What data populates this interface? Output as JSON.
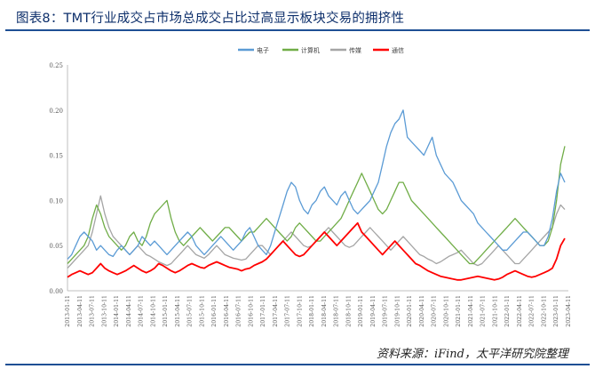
{
  "header": {
    "title": "图表8：TMT行业成交占市场总成交占比过高显示板块交易的拥挤性"
  },
  "footer": {
    "source": "资料来源：iFind，太平洋研究院整理"
  },
  "chart_data": {
    "type": "line",
    "title": "",
    "xlabel": "",
    "ylabel": "",
    "ylim": [
      0,
      0.25
    ],
    "yticks": [
      "0.00",
      "0.05",
      "0.10",
      "0.15",
      "0.20",
      "0.25"
    ],
    "x_tick_labels": [
      "2013-01-11",
      "2013-04-11",
      "2013-07-11",
      "2013-10-11",
      "2014-01-11",
      "2014-04-11",
      "2014-07-11",
      "2014-10-11",
      "2015-01-11",
      "2015-04-11",
      "2015-07-11",
      "2015-10-11",
      "2016-01-11",
      "2016-04-11",
      "2016-07-11",
      "2016-10-11",
      "2017-01-11",
      "2017-04-11",
      "2017-07-11",
      "2017-10-11",
      "2018-01-11",
      "2018-04-11",
      "2018-07-11",
      "2018-10-11",
      "2019-01-11",
      "2019-04-11",
      "2019-07-11",
      "2019-10-11",
      "2020-01-11",
      "2020-04-11",
      "2020-07-11",
      "2020-10-11",
      "2021-01-11",
      "2021-04-11",
      "2021-07-11",
      "2021-10-11",
      "2022-01-11",
      "2022-04-11",
      "2022-07-11",
      "2022-10-11",
      "2023-01-11",
      "2023-04-11"
    ],
    "grid": false,
    "legend_position": "top-center",
    "series": [
      {
        "name": "电子",
        "color": "#5b9bd5",
        "values": [
          0.035,
          0.04,
          0.05,
          0.06,
          0.065,
          0.06,
          0.055,
          0.045,
          0.05,
          0.045,
          0.04,
          0.038,
          0.045,
          0.05,
          0.045,
          0.04,
          0.045,
          0.05,
          0.06,
          0.055,
          0.05,
          0.055,
          0.05,
          0.045,
          0.04,
          0.045,
          0.05,
          0.055,
          0.06,
          0.065,
          0.06,
          0.05,
          0.045,
          0.04,
          0.045,
          0.05,
          0.055,
          0.06,
          0.055,
          0.05,
          0.045,
          0.05,
          0.055,
          0.065,
          0.07,
          0.06,
          0.05,
          0.045,
          0.04,
          0.05,
          0.065,
          0.08,
          0.095,
          0.11,
          0.12,
          0.115,
          0.1,
          0.09,
          0.085,
          0.095,
          0.1,
          0.11,
          0.115,
          0.105,
          0.1,
          0.095,
          0.105,
          0.11,
          0.1,
          0.09,
          0.085,
          0.09,
          0.095,
          0.1,
          0.11,
          0.12,
          0.14,
          0.16,
          0.175,
          0.185,
          0.19,
          0.2,
          0.17,
          0.165,
          0.16,
          0.155,
          0.15,
          0.16,
          0.17,
          0.15,
          0.14,
          0.13,
          0.125,
          0.12,
          0.11,
          0.1,
          0.095,
          0.09,
          0.085,
          0.075,
          0.07,
          0.065,
          0.06,
          0.055,
          0.05,
          0.045,
          0.045,
          0.05,
          0.055,
          0.06,
          0.065,
          0.065,
          0.06,
          0.055,
          0.05,
          0.05,
          0.06,
          0.08,
          0.11,
          0.13,
          0.12
        ]
      },
      {
        "name": "计算机",
        "color": "#70ad47",
        "values": [
          0.03,
          0.035,
          0.04,
          0.045,
          0.05,
          0.06,
          0.08,
          0.095,
          0.085,
          0.07,
          0.06,
          0.055,
          0.05,
          0.045,
          0.05,
          0.06,
          0.065,
          0.055,
          0.05,
          0.06,
          0.075,
          0.085,
          0.09,
          0.095,
          0.1,
          0.08,
          0.065,
          0.055,
          0.05,
          0.055,
          0.06,
          0.065,
          0.07,
          0.065,
          0.06,
          0.055,
          0.06,
          0.065,
          0.07,
          0.07,
          0.065,
          0.06,
          0.055,
          0.06,
          0.065,
          0.065,
          0.07,
          0.075,
          0.08,
          0.075,
          0.07,
          0.065,
          0.06,
          0.055,
          0.06,
          0.07,
          0.075,
          0.07,
          0.065,
          0.06,
          0.055,
          0.055,
          0.06,
          0.065,
          0.07,
          0.075,
          0.08,
          0.09,
          0.1,
          0.11,
          0.12,
          0.13,
          0.12,
          0.11,
          0.1,
          0.09,
          0.085,
          0.09,
          0.1,
          0.11,
          0.12,
          0.12,
          0.11,
          0.1,
          0.095,
          0.09,
          0.085,
          0.08,
          0.075,
          0.07,
          0.065,
          0.06,
          0.055,
          0.05,
          0.045,
          0.04,
          0.035,
          0.03,
          0.03,
          0.035,
          0.04,
          0.045,
          0.05,
          0.055,
          0.06,
          0.065,
          0.07,
          0.075,
          0.08,
          0.075,
          0.07,
          0.065,
          0.06,
          0.055,
          0.05,
          0.05,
          0.055,
          0.07,
          0.1,
          0.14,
          0.16
        ]
      },
      {
        "name": "传媒",
        "color": "#a5a5a5",
        "values": [
          0.025,
          0.03,
          0.035,
          0.04,
          0.045,
          0.05,
          0.065,
          0.085,
          0.105,
          0.085,
          0.07,
          0.06,
          0.055,
          0.05,
          0.045,
          0.04,
          0.045,
          0.05,
          0.045,
          0.04,
          0.038,
          0.035,
          0.032,
          0.03,
          0.028,
          0.03,
          0.035,
          0.04,
          0.045,
          0.05,
          0.045,
          0.04,
          0.038,
          0.036,
          0.04,
          0.045,
          0.05,
          0.045,
          0.04,
          0.038,
          0.036,
          0.035,
          0.034,
          0.035,
          0.04,
          0.045,
          0.05,
          0.05,
          0.045,
          0.04,
          0.045,
          0.05,
          0.055,
          0.06,
          0.065,
          0.06,
          0.055,
          0.05,
          0.048,
          0.05,
          0.055,
          0.06,
          0.065,
          0.07,
          0.065,
          0.06,
          0.055,
          0.05,
          0.048,
          0.05,
          0.055,
          0.06,
          0.065,
          0.07,
          0.065,
          0.06,
          0.055,
          0.05,
          0.045,
          0.05,
          0.055,
          0.06,
          0.055,
          0.05,
          0.045,
          0.04,
          0.038,
          0.035,
          0.033,
          0.03,
          0.032,
          0.035,
          0.038,
          0.04,
          0.042,
          0.045,
          0.04,
          0.035,
          0.03,
          0.028,
          0.03,
          0.035,
          0.04,
          0.045,
          0.05,
          0.045,
          0.04,
          0.035,
          0.03,
          0.03,
          0.035,
          0.04,
          0.045,
          0.05,
          0.055,
          0.06,
          0.065,
          0.07,
          0.085,
          0.095,
          0.09
        ]
      },
      {
        "name": "通信",
        "color": "#ff0000",
        "values": [
          0.015,
          0.018,
          0.02,
          0.022,
          0.02,
          0.018,
          0.02,
          0.025,
          0.03,
          0.025,
          0.022,
          0.02,
          0.018,
          0.02,
          0.022,
          0.025,
          0.028,
          0.025,
          0.022,
          0.02,
          0.022,
          0.025,
          0.03,
          0.028,
          0.025,
          0.022,
          0.02,
          0.022,
          0.025,
          0.028,
          0.03,
          0.028,
          0.026,
          0.025,
          0.028,
          0.03,
          0.032,
          0.03,
          0.028,
          0.026,
          0.025,
          0.024,
          0.022,
          0.024,
          0.025,
          0.028,
          0.03,
          0.032,
          0.035,
          0.04,
          0.045,
          0.05,
          0.055,
          0.05,
          0.045,
          0.04,
          0.038,
          0.04,
          0.045,
          0.05,
          0.055,
          0.06,
          0.065,
          0.06,
          0.055,
          0.05,
          0.055,
          0.06,
          0.065,
          0.07,
          0.075,
          0.065,
          0.06,
          0.055,
          0.05,
          0.045,
          0.04,
          0.045,
          0.05,
          0.055,
          0.05,
          0.045,
          0.04,
          0.035,
          0.03,
          0.028,
          0.025,
          0.022,
          0.02,
          0.018,
          0.016,
          0.015,
          0.014,
          0.013,
          0.012,
          0.012,
          0.013,
          0.014,
          0.015,
          0.016,
          0.015,
          0.014,
          0.013,
          0.012,
          0.013,
          0.015,
          0.018,
          0.02,
          0.022,
          0.02,
          0.018,
          0.016,
          0.015,
          0.016,
          0.018,
          0.02,
          0.022,
          0.025,
          0.035,
          0.05,
          0.058
        ]
      }
    ]
  }
}
